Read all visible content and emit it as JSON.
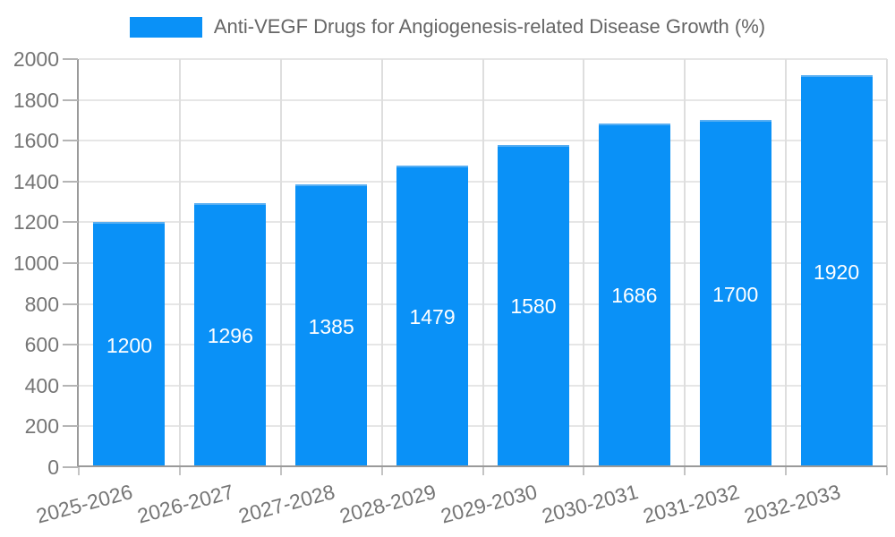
{
  "legend": {
    "label": "Anti-VEGF Drugs for Angiogenesis-related Disease Growth (%)"
  },
  "chart_data": {
    "type": "bar",
    "title": "Anti-VEGF Drugs for Angiogenesis-related Disease Growth (%)",
    "categories": [
      "2025-2026",
      "2026-2027",
      "2027-2028",
      "2028-2029",
      "2029-2030",
      "2030-2031",
      "2031-2032",
      "2032-2033"
    ],
    "values": [
      1200,
      1296,
      1385,
      1479,
      1580,
      1686,
      1700,
      1920
    ],
    "xlabel": "",
    "ylabel": "",
    "ylim": [
      0,
      2000
    ],
    "ytick_step": 200,
    "ytick_values": [
      0,
      200,
      400,
      600,
      800,
      1000,
      1200,
      1400,
      1600,
      1800,
      2000
    ],
    "bar_color": "#0a91f7",
    "bar_top_edge_color": "#57aef2",
    "bar_label_color": "#ffffff",
    "grid": true,
    "legend_position": "top-center",
    "xtick_rotation_deg": -15
  }
}
